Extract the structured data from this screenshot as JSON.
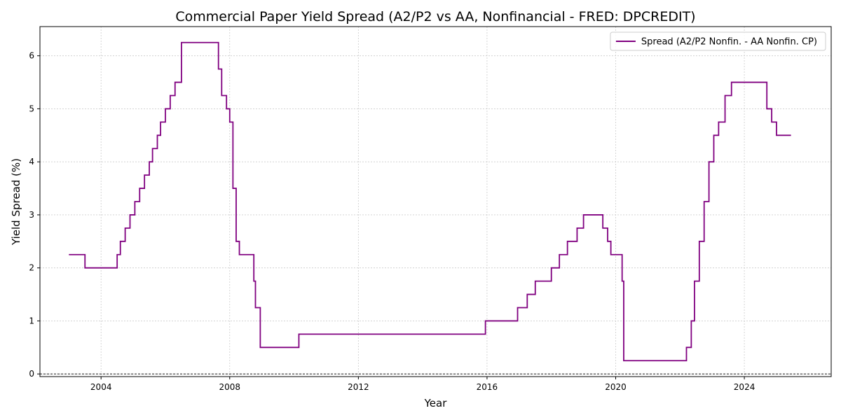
{
  "chart_data": {
    "type": "line",
    "step": "post",
    "title": "Commercial Paper Yield Spread (A2/P2 vs AA, Nonfinancial - FRED: DPCREDIT)",
    "xlabel": "Year",
    "ylabel": "Yield Spread (%)",
    "xlim": [
      2002.1,
      2026.7
    ],
    "ylim": [
      -0.05,
      6.55
    ],
    "xticks": [
      2004,
      2008,
      2012,
      2016,
      2020,
      2024
    ],
    "yticks": [
      0,
      1,
      2,
      3,
      4,
      5,
      6
    ],
    "grid": true,
    "zero_line": true,
    "legend_position": "top-right",
    "series": [
      {
        "name": "Spread (A2/P2 Nonfin. - AA Nonfin. CP)",
        "color": "#800080",
        "x": [
          2003.0,
          2003.5,
          2004.5,
          2004.6,
          2004.75,
          2004.9,
          2005.05,
          2005.2,
          2005.35,
          2005.5,
          2005.6,
          2005.75,
          2005.85,
          2006.0,
          2006.15,
          2006.3,
          2006.5,
          2007.65,
          2007.75,
          2007.9,
          2008.0,
          2008.1,
          2008.2,
          2008.3,
          2008.75,
          2008.8,
          2008.95,
          2010.15,
          2015.95,
          2016.95,
          2017.25,
          2017.5,
          2018.0,
          2018.25,
          2018.5,
          2018.8,
          2019.0,
          2019.6,
          2019.75,
          2019.85,
          2020.2,
          2020.25,
          2022.2,
          2022.35,
          2022.45,
          2022.6,
          2022.75,
          2022.9,
          2023.05,
          2023.2,
          2023.4,
          2023.6,
          2024.7,
          2024.85,
          2025.0,
          2025.45
        ],
        "y": [
          2.25,
          2.0,
          2.25,
          2.5,
          2.75,
          3.0,
          3.25,
          3.5,
          3.75,
          4.0,
          4.25,
          4.5,
          4.75,
          5.0,
          5.25,
          5.5,
          6.25,
          5.75,
          5.25,
          5.0,
          4.75,
          3.5,
          2.5,
          2.25,
          1.75,
          1.25,
          0.5,
          0.75,
          1.0,
          1.25,
          1.5,
          1.75,
          2.0,
          2.25,
          2.5,
          2.75,
          3.0,
          2.75,
          2.5,
          2.25,
          1.75,
          0.25,
          0.5,
          1.0,
          1.75,
          2.5,
          3.25,
          4.0,
          4.5,
          4.75,
          5.25,
          5.5,
          5.0,
          4.75,
          4.5,
          4.5
        ]
      }
    ]
  }
}
